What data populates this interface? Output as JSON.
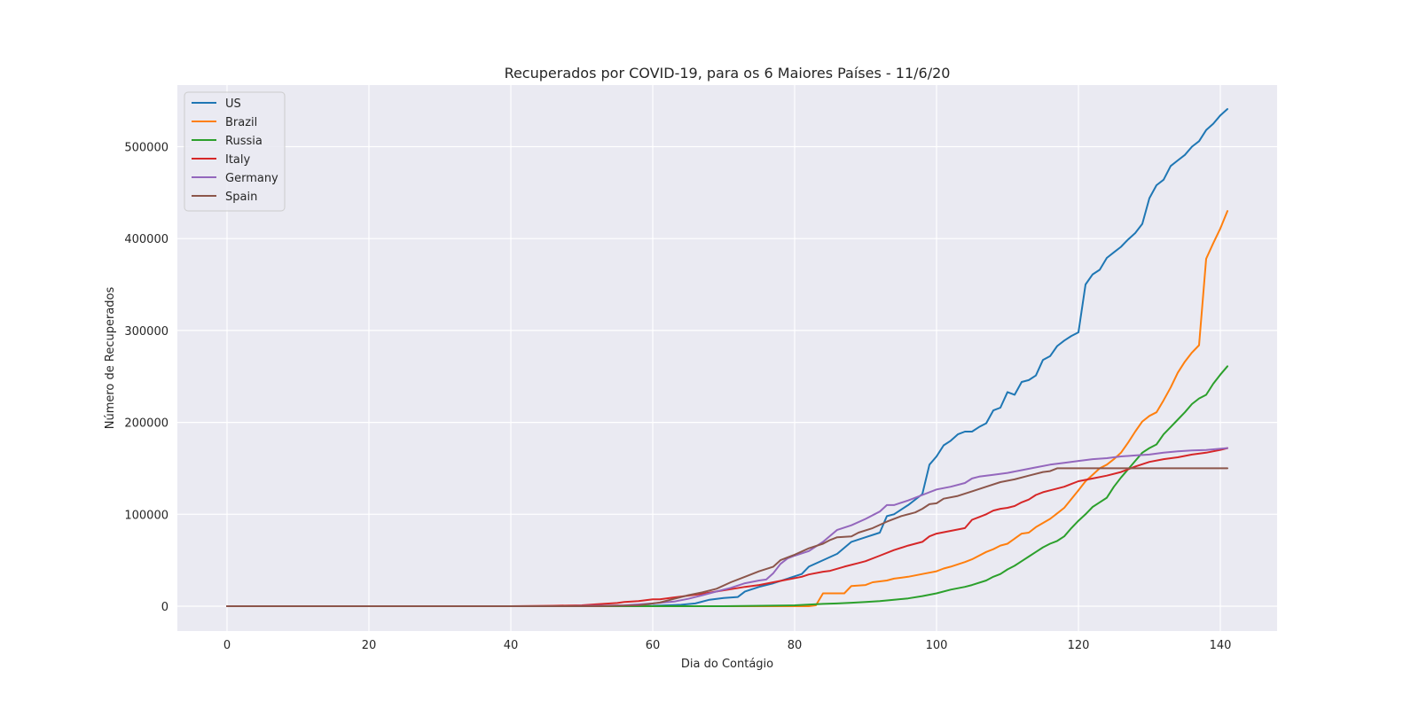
{
  "chart_data": {
    "type": "line",
    "title": "Recuperados por COVID-19, para os 6 Maiores Países - 11/6/20",
    "xlabel": "Dia do Contágio",
    "ylabel": "Número de Recuperados",
    "xlim": [
      -7,
      148
    ],
    "ylim": [
      -27000,
      567000
    ],
    "xticks": [
      0,
      20,
      40,
      60,
      80,
      100,
      120,
      140
    ],
    "yticks": [
      0,
      100000,
      200000,
      300000,
      400000,
      500000
    ],
    "grid": true,
    "legend_position": "top-left",
    "series": [
      {
        "name": "US",
        "color": "#1f77b4",
        "points": [
          [
            0,
            0
          ],
          [
            50,
            0
          ],
          [
            60,
            500
          ],
          [
            64,
            1500
          ],
          [
            66,
            3000
          ],
          [
            68,
            7000
          ],
          [
            70,
            9000
          ],
          [
            72,
            10000
          ],
          [
            73,
            16000
          ],
          [
            75,
            21000
          ],
          [
            77,
            25000
          ],
          [
            79,
            30000
          ],
          [
            81,
            35000
          ],
          [
            82,
            43000
          ],
          [
            84,
            50000
          ],
          [
            86,
            57000
          ],
          [
            88,
            70000
          ],
          [
            90,
            75000
          ],
          [
            92,
            80000
          ],
          [
            93,
            98000
          ],
          [
            94,
            100000
          ],
          [
            96,
            110000
          ],
          [
            98,
            122000
          ],
          [
            99,
            154000
          ],
          [
            100,
            163000
          ],
          [
            101,
            175000
          ],
          [
            102,
            180000
          ],
          [
            103,
            187000
          ],
          [
            104,
            190000
          ],
          [
            105,
            190000
          ],
          [
            106,
            195000
          ],
          [
            107,
            199000
          ],
          [
            108,
            213000
          ],
          [
            109,
            216000
          ],
          [
            110,
            233000
          ],
          [
            111,
            230000
          ],
          [
            112,
            244000
          ],
          [
            113,
            246000
          ],
          [
            114,
            251000
          ],
          [
            115,
            268000
          ],
          [
            116,
            272000
          ],
          [
            117,
            283000
          ],
          [
            118,
            289000
          ],
          [
            119,
            294000
          ],
          [
            120,
            298000
          ],
          [
            121,
            350000
          ],
          [
            122,
            361000
          ],
          [
            123,
            366000
          ],
          [
            124,
            379000
          ],
          [
            125,
            385000
          ],
          [
            126,
            391000
          ],
          [
            127,
            399000
          ],
          [
            128,
            406000
          ],
          [
            129,
            416000
          ],
          [
            130,
            444000
          ],
          [
            131,
            458000
          ],
          [
            132,
            464000
          ],
          [
            133,
            479000
          ],
          [
            134,
            485000
          ],
          [
            135,
            491000
          ],
          [
            136,
            500000
          ],
          [
            137,
            506000
          ],
          [
            138,
            518000
          ],
          [
            139,
            525000
          ],
          [
            140,
            534000
          ],
          [
            141,
            541000
          ]
        ]
      },
      {
        "name": "Brazil",
        "color": "#ff7f0e",
        "points": [
          [
            0,
            0
          ],
          [
            82,
            0
          ],
          [
            83,
            1000
          ],
          [
            84,
            14000
          ],
          [
            87,
            14000
          ],
          [
            88,
            22000
          ],
          [
            90,
            23000
          ],
          [
            91,
            26000
          ],
          [
            93,
            28000
          ],
          [
            94,
            30000
          ],
          [
            96,
            32000
          ],
          [
            98,
            35000
          ],
          [
            100,
            38000
          ],
          [
            101,
            41000
          ],
          [
            102,
            43000
          ],
          [
            104,
            48000
          ],
          [
            105,
            51000
          ],
          [
            107,
            59000
          ],
          [
            108,
            62000
          ],
          [
            109,
            66000
          ],
          [
            110,
            68000
          ],
          [
            112,
            79000
          ],
          [
            113,
            80000
          ],
          [
            114,
            86000
          ],
          [
            116,
            95000
          ],
          [
            117,
            101000
          ],
          [
            118,
            107000
          ],
          [
            120,
            126000
          ],
          [
            121,
            136000
          ],
          [
            122,
            143000
          ],
          [
            123,
            150000
          ],
          [
            124,
            154000
          ],
          [
            125,
            160000
          ],
          [
            126,
            167000
          ],
          [
            127,
            178000
          ],
          [
            128,
            190000
          ],
          [
            129,
            201000
          ],
          [
            130,
            207000
          ],
          [
            131,
            211000
          ],
          [
            132,
            224000
          ],
          [
            133,
            238000
          ],
          [
            134,
            254000
          ],
          [
            135,
            266000
          ],
          [
            136,
            276000
          ],
          [
            137,
            284000
          ],
          [
            138,
            378000
          ],
          [
            139,
            395000
          ],
          [
            140,
            411000
          ],
          [
            141,
            430000
          ]
        ]
      },
      {
        "name": "Russia",
        "color": "#2ca02c",
        "points": [
          [
            0,
            0
          ],
          [
            70,
            0
          ],
          [
            80,
            1000
          ],
          [
            84,
            2500
          ],
          [
            86,
            3000
          ],
          [
            88,
            3800
          ],
          [
            90,
            4500
          ],
          [
            92,
            5500
          ],
          [
            94,
            7000
          ],
          [
            96,
            8500
          ],
          [
            98,
            11000
          ],
          [
            100,
            14000
          ],
          [
            102,
            18000
          ],
          [
            104,
            21000
          ],
          [
            105,
            23000
          ],
          [
            107,
            28000
          ],
          [
            108,
            32000
          ],
          [
            109,
            35000
          ],
          [
            110,
            40000
          ],
          [
            111,
            44000
          ],
          [
            112,
            49000
          ],
          [
            113,
            54000
          ],
          [
            114,
            59000
          ],
          [
            115,
            64000
          ],
          [
            116,
            68000
          ],
          [
            117,
            71000
          ],
          [
            118,
            76000
          ],
          [
            119,
            85000
          ],
          [
            120,
            93000
          ],
          [
            121,
            100000
          ],
          [
            122,
            108000
          ],
          [
            123,
            113000
          ],
          [
            124,
            118000
          ],
          [
            125,
            130000
          ],
          [
            126,
            140000
          ],
          [
            127,
            149000
          ],
          [
            128,
            158000
          ],
          [
            129,
            167000
          ],
          [
            130,
            172000
          ],
          [
            131,
            176000
          ],
          [
            132,
            187000
          ],
          [
            133,
            195000
          ],
          [
            134,
            203000
          ],
          [
            135,
            211000
          ],
          [
            136,
            220000
          ],
          [
            137,
            226000
          ],
          [
            138,
            230000
          ],
          [
            139,
            242000
          ],
          [
            140,
            252000
          ],
          [
            141,
            261000
          ]
        ]
      },
      {
        "name": "Italy",
        "color": "#d62728",
        "points": [
          [
            0,
            0
          ],
          [
            40,
            0
          ],
          [
            46,
            500
          ],
          [
            50,
            1000
          ],
          [
            52,
            2000
          ],
          [
            55,
            3500
          ],
          [
            56,
            4500
          ],
          [
            58,
            5500
          ],
          [
            60,
            7500
          ],
          [
            61,
            7500
          ],
          [
            63,
            9500
          ],
          [
            65,
            11500
          ],
          [
            67,
            13500
          ],
          [
            69,
            16000
          ],
          [
            71,
            18500
          ],
          [
            73,
            21000
          ],
          [
            75,
            23000
          ],
          [
            77,
            26000
          ],
          [
            79,
            29000
          ],
          [
            81,
            32000
          ],
          [
            82,
            34500
          ],
          [
            84,
            37500
          ],
          [
            85,
            38500
          ],
          [
            87,
            43000
          ],
          [
            89,
            47000
          ],
          [
            90,
            49000
          ],
          [
            92,
            55000
          ],
          [
            94,
            61000
          ],
          [
            96,
            66000
          ],
          [
            98,
            70000
          ],
          [
            99,
            76000
          ],
          [
            100,
            79000
          ],
          [
            102,
            82000
          ],
          [
            104,
            85000
          ],
          [
            105,
            94000
          ],
          [
            106,
            97000
          ],
          [
            107,
            100000
          ],
          [
            108,
            104000
          ],
          [
            109,
            106000
          ],
          [
            110,
            107000
          ],
          [
            111,
            109000
          ],
          [
            112,
            113000
          ],
          [
            113,
            116000
          ],
          [
            114,
            121000
          ],
          [
            115,
            124000
          ],
          [
            116,
            126000
          ],
          [
            118,
            130000
          ],
          [
            119,
            133000
          ],
          [
            120,
            136000
          ],
          [
            122,
            139000
          ],
          [
            124,
            142000
          ],
          [
            126,
            146000
          ],
          [
            128,
            152000
          ],
          [
            130,
            157000
          ],
          [
            132,
            160000
          ],
          [
            134,
            162000
          ],
          [
            136,
            165000
          ],
          [
            138,
            167000
          ],
          [
            140,
            170000
          ],
          [
            141,
            172000
          ]
        ]
      },
      {
        "name": "Germany",
        "color": "#9467bd",
        "points": [
          [
            0,
            0
          ],
          [
            48,
            0
          ],
          [
            56,
            1000
          ],
          [
            60,
            3000
          ],
          [
            63,
            5000
          ],
          [
            65,
            8000
          ],
          [
            67,
            12000
          ],
          [
            69,
            16000
          ],
          [
            71,
            20000
          ],
          [
            73,
            25000
          ],
          [
            75,
            28000
          ],
          [
            76,
            29000
          ],
          [
            77,
            36000
          ],
          [
            78,
            46000
          ],
          [
            79,
            52000
          ],
          [
            80,
            55000
          ],
          [
            82,
            60000
          ],
          [
            84,
            70000
          ],
          [
            86,
            83000
          ],
          [
            88,
            88000
          ],
          [
            90,
            95000
          ],
          [
            92,
            103000
          ],
          [
            93,
            110000
          ],
          [
            94,
            110000
          ],
          [
            96,
            115000
          ],
          [
            98,
            121000
          ],
          [
            100,
            127000
          ],
          [
            102,
            130000
          ],
          [
            104,
            134000
          ],
          [
            105,
            139000
          ],
          [
            106,
            141000
          ],
          [
            107,
            142000
          ],
          [
            108,
            143000
          ],
          [
            110,
            145000
          ],
          [
            112,
            148000
          ],
          [
            114,
            151000
          ],
          [
            116,
            154000
          ],
          [
            118,
            156000
          ],
          [
            120,
            158000
          ],
          [
            122,
            160000
          ],
          [
            124,
            161000
          ],
          [
            126,
            163000
          ],
          [
            128,
            164000
          ],
          [
            130,
            165000
          ],
          [
            132,
            167000
          ],
          [
            134,
            168500
          ],
          [
            136,
            169500
          ],
          [
            138,
            170000
          ],
          [
            141,
            172000
          ]
        ]
      },
      {
        "name": "Spain",
        "color": "#8c564b",
        "points": [
          [
            0,
            0
          ],
          [
            52,
            0
          ],
          [
            58,
            1000
          ],
          [
            61,
            4000
          ],
          [
            63,
            8000
          ],
          [
            65,
            12000
          ],
          [
            67,
            15000
          ],
          [
            69,
            19000
          ],
          [
            71,
            26000
          ],
          [
            73,
            32000
          ],
          [
            75,
            38000
          ],
          [
            77,
            43000
          ],
          [
            78,
            50000
          ],
          [
            80,
            56000
          ],
          [
            82,
            63000
          ],
          [
            84,
            68000
          ],
          [
            85,
            72000
          ],
          [
            86,
            75000
          ],
          [
            88,
            76000
          ],
          [
            89,
            80000
          ],
          [
            91,
            85000
          ],
          [
            93,
            92000
          ],
          [
            95,
            98000
          ],
          [
            97,
            102000
          ],
          [
            98,
            106000
          ],
          [
            99,
            111000
          ],
          [
            100,
            112000
          ],
          [
            101,
            117000
          ],
          [
            103,
            120000
          ],
          [
            105,
            125000
          ],
          [
            107,
            130000
          ],
          [
            109,
            135000
          ],
          [
            111,
            138000
          ],
          [
            113,
            142000
          ],
          [
            115,
            146000
          ],
          [
            116,
            147000
          ],
          [
            117,
            150000
          ],
          [
            120,
            150000
          ],
          [
            141,
            150000
          ]
        ]
      }
    ]
  }
}
